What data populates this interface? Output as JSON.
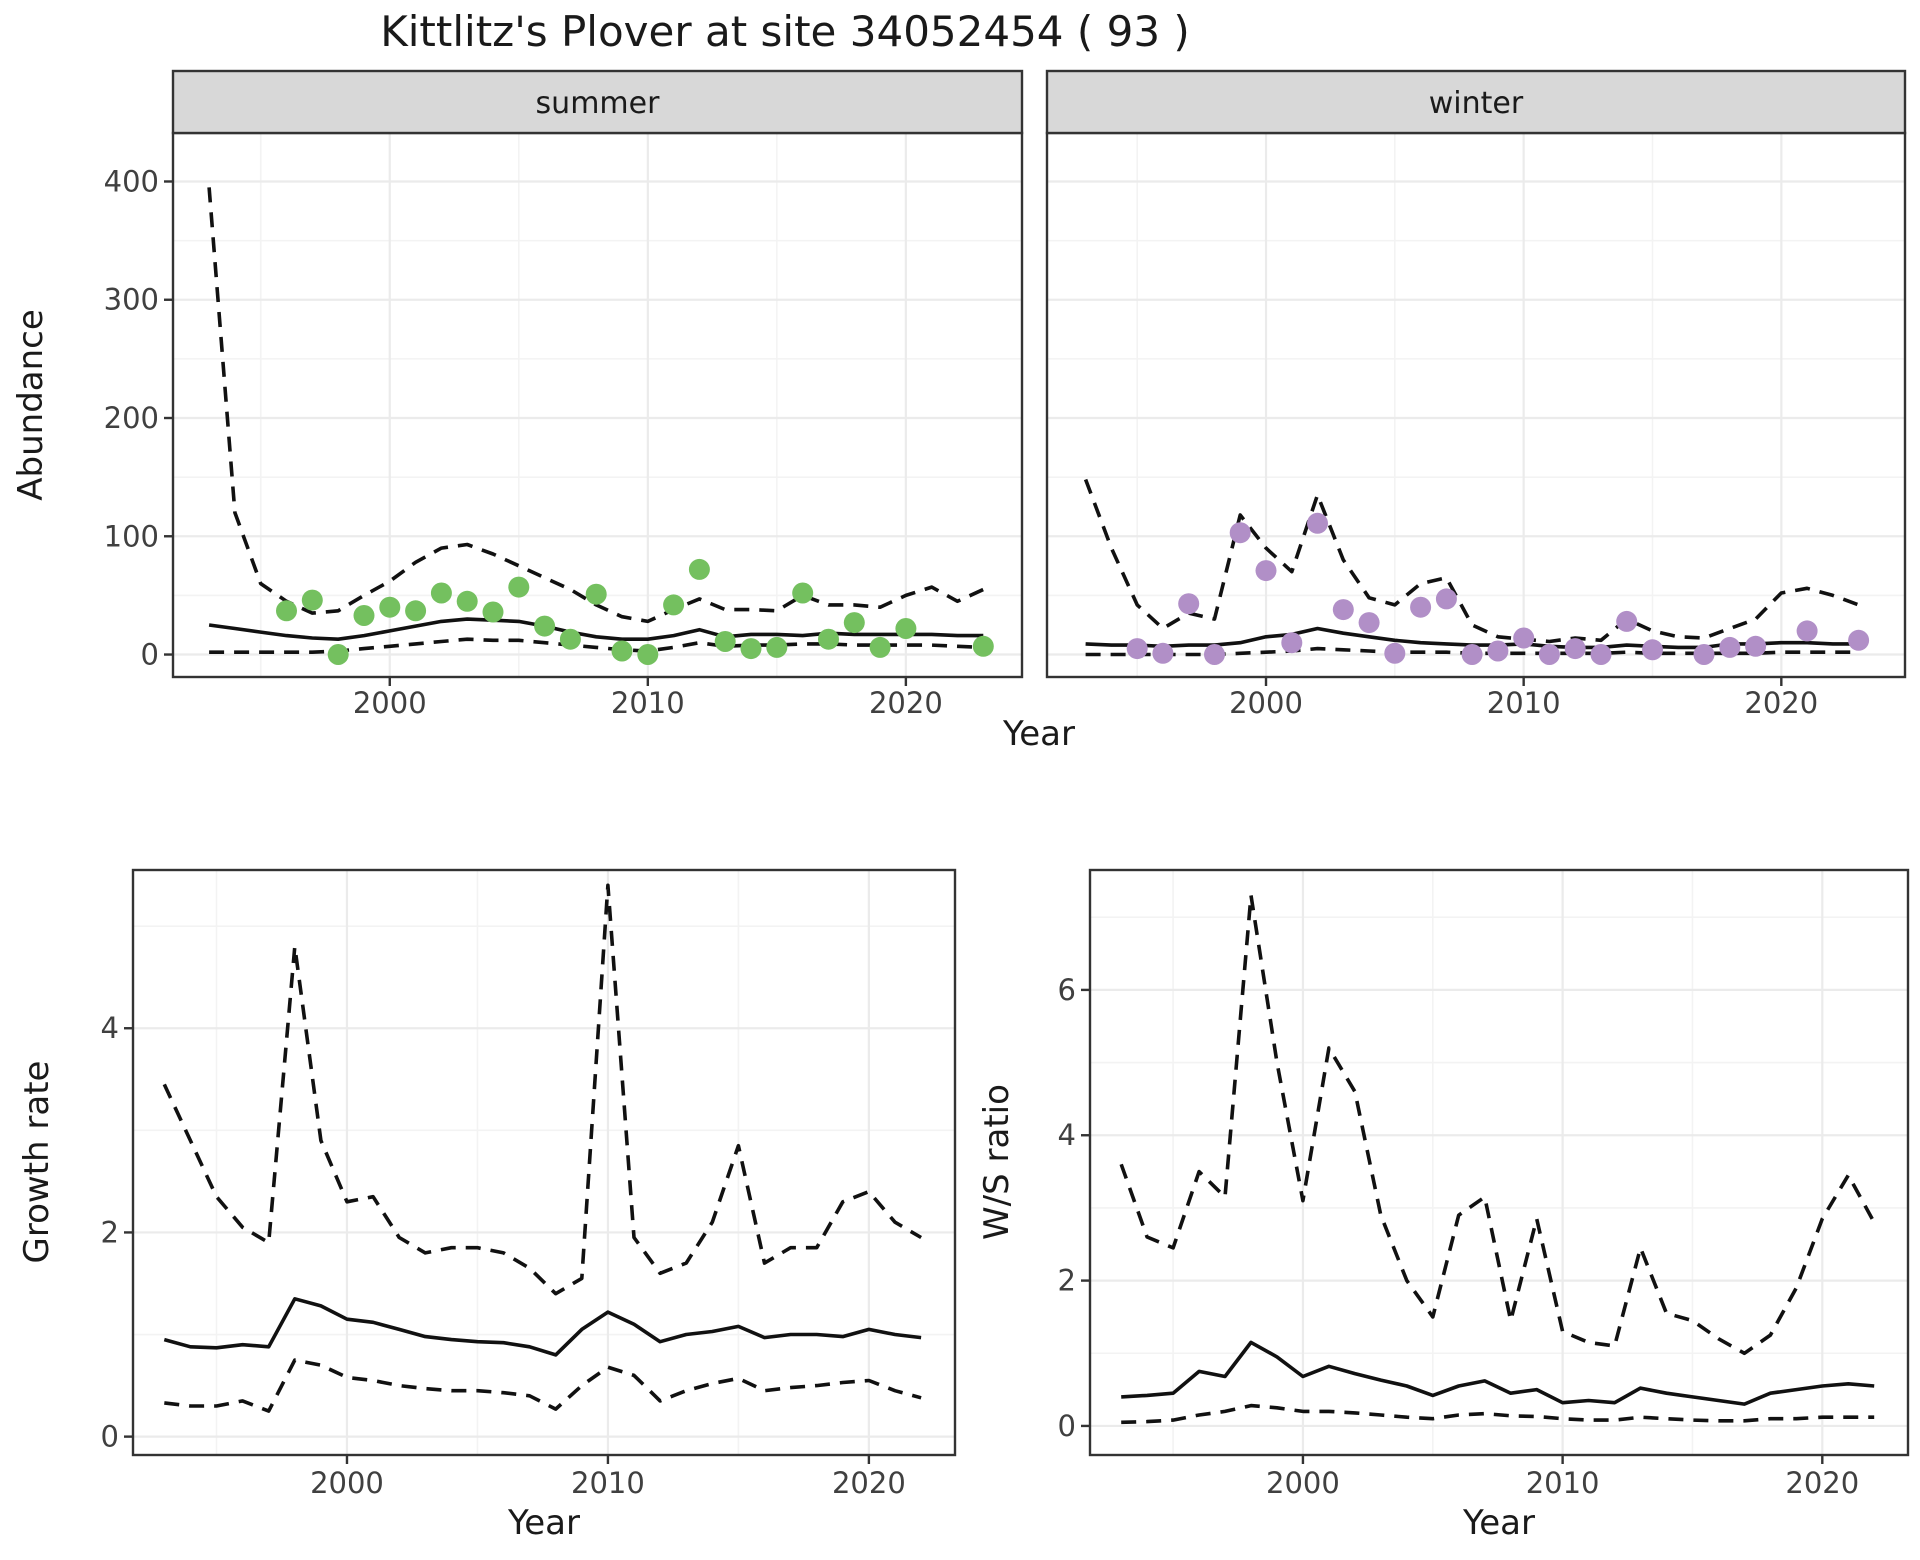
{
  "title": "Kittlitz's Plover at site 34052454 ( 93 )",
  "labels": {
    "x_axis": "Year",
    "y_axis_top": "Abundance",
    "y_axis_growth": "Growth rate",
    "y_axis_ws": "W/S ratio"
  },
  "colors": {
    "summer_point": "#74c05f",
    "winter_point": "#b18fc7",
    "line": "#111111",
    "strip_bg": "#d8d8d8",
    "grid_major": "#ebebeb",
    "panel_border": "#333333",
    "tick_text": "#404040"
  },
  "chart_data": [
    {
      "id": "abundance-summer",
      "type": "line+scatter",
      "strip": "summer",
      "xlabel": "Year",
      "ylabel": "Abundance",
      "xlim": [
        1991.6,
        2024.5
      ],
      "ylim": [
        -19,
        441
      ],
      "xticks": [
        2000,
        2010,
        2020
      ],
      "xticks_minor": [
        1995,
        2005,
        2015
      ],
      "yticks": [
        0,
        100,
        200,
        300,
        400
      ],
      "yticks_minor": [
        50,
        150,
        250,
        350
      ],
      "show_ytick_labels": true,
      "line_years": [
        1993,
        1994,
        1995,
        1996,
        1997,
        1998,
        1999,
        2000,
        2001,
        2002,
        2003,
        2004,
        2005,
        2006,
        2007,
        2008,
        2009,
        2010,
        2011,
        2012,
        2013,
        2014,
        2015,
        2016,
        2017,
        2018,
        2019,
        2020,
        2021,
        2022,
        2023
      ],
      "series": [
        {
          "name": "median",
          "style": "solid",
          "values": [
            25,
            22,
            19,
            16,
            14,
            13,
            16,
            20,
            24,
            28,
            30,
            29,
            28,
            24,
            19,
            15,
            13,
            13,
            16,
            21,
            15,
            17,
            17,
            16,
            18,
            17,
            17,
            17,
            17,
            16,
            16
          ]
        },
        {
          "name": "upper-ci",
          "style": "dashed",
          "values": [
            395,
            120,
            60,
            45,
            35,
            37,
            50,
            62,
            78,
            90,
            93,
            85,
            75,
            65,
            55,
            42,
            32,
            28,
            38,
            47,
            38,
            38,
            37,
            50,
            42,
            42,
            40,
            50,
            57,
            45,
            55
          ]
        },
        {
          "name": "lower-ci",
          "style": "dashed",
          "values": [
            2,
            2,
            2,
            2,
            2,
            3,
            5,
            7,
            9,
            11,
            13,
            12,
            12,
            10,
            8,
            6,
            4,
            3,
            6,
            10,
            7,
            8,
            8,
            9,
            9,
            8,
            8,
            8,
            8,
            7,
            6
          ]
        }
      ],
      "points": {
        "color_key": "summer_point",
        "years": [
          1996,
          1997,
          1998,
          1999,
          2000,
          2001,
          2002,
          2003,
          2004,
          2005,
          2006,
          2007,
          2008,
          2009,
          2010,
          2011,
          2012,
          2013,
          2014,
          2015,
          2016,
          2017,
          2018,
          2019,
          2020,
          2023
        ],
        "values": [
          37,
          46,
          0,
          33,
          40,
          37,
          52,
          45,
          36,
          57,
          24,
          13,
          51,
          3,
          0,
          42,
          72,
          11,
          5,
          6,
          52,
          13,
          27,
          6,
          22,
          7
        ]
      }
    },
    {
      "id": "abundance-winter",
      "type": "line+scatter",
      "strip": "winter",
      "xlabel": "Year",
      "ylabel": "Abundance",
      "xlim": [
        1991.5,
        2024.8
      ],
      "ylim": [
        -19,
        441
      ],
      "xticks": [
        2000,
        2010,
        2020
      ],
      "xticks_minor": [
        1995,
        2005,
        2015
      ],
      "yticks": [
        0,
        100,
        200,
        300,
        400
      ],
      "yticks_minor": [
        50,
        150,
        250,
        350
      ],
      "show_ytick_labels": false,
      "line_years": [
        1993,
        1994,
        1995,
        1996,
        1997,
        1998,
        1999,
        2000,
        2001,
        2002,
        2003,
        2004,
        2005,
        2006,
        2007,
        2008,
        2009,
        2010,
        2011,
        2012,
        2013,
        2014,
        2015,
        2016,
        2017,
        2018,
        2019,
        2020,
        2021,
        2022,
        2023
      ],
      "series": [
        {
          "name": "median",
          "style": "solid",
          "values": [
            9,
            8,
            8,
            7,
            8,
            8,
            10,
            15,
            17,
            22,
            18,
            15,
            12,
            10,
            9,
            8,
            8,
            9,
            7,
            6,
            6,
            8,
            7,
            6,
            6,
            9,
            9,
            10,
            10,
            9,
            9
          ]
        },
        {
          "name": "upper-ci",
          "style": "dashed",
          "values": [
            148,
            90,
            42,
            22,
            35,
            30,
            118,
            90,
            70,
            135,
            80,
            48,
            42,
            60,
            65,
            25,
            15,
            13,
            11,
            14,
            12,
            30,
            20,
            15,
            14,
            22,
            30,
            52,
            56,
            50,
            42
          ]
        },
        {
          "name": "lower-ci",
          "style": "dashed",
          "values": [
            0,
            0,
            0,
            0,
            0,
            0,
            1,
            2,
            3,
            5,
            4,
            3,
            2,
            2,
            2,
            1,
            1,
            1,
            1,
            1,
            1,
            2,
            1,
            1,
            1,
            1,
            1,
            2,
            2,
            2,
            2
          ]
        }
      ],
      "points": {
        "color_key": "winter_point",
        "years": [
          1995,
          1996,
          1997,
          1998,
          1999,
          2000,
          2001,
          2002,
          2003,
          2004,
          2005,
          2006,
          2007,
          2008,
          2009,
          2010,
          2011,
          2012,
          2013,
          2014,
          2015,
          2017,
          2018,
          2019,
          2021,
          2023
        ],
        "values": [
          5,
          1,
          43,
          0,
          103,
          71,
          10,
          111,
          38,
          27,
          1,
          40,
          47,
          0,
          3,
          14,
          0,
          5,
          0,
          28,
          4,
          0,
          6,
          7,
          20,
          12
        ]
      }
    },
    {
      "id": "growth-rate",
      "type": "line",
      "strip": null,
      "xlabel": "Year",
      "ylabel": "Growth rate",
      "xlim": [
        1991.8,
        2023.3
      ],
      "ylim": [
        -0.18,
        5.55
      ],
      "xticks": [
        2000,
        2010,
        2020
      ],
      "xticks_minor": [
        1995,
        2005,
        2015
      ],
      "yticks": [
        0,
        2,
        4
      ],
      "yticks_minor": [
        1,
        3,
        5
      ],
      "show_ytick_labels": true,
      "line_years": [
        1993,
        1994,
        1995,
        1996,
        1997,
        1998,
        1999,
        2000,
        2001,
        2002,
        2003,
        2004,
        2005,
        2006,
        2007,
        2008,
        2009,
        2010,
        2011,
        2012,
        2013,
        2014,
        2015,
        2016,
        2017,
        2018,
        2019,
        2020,
        2021,
        2022
      ],
      "series": [
        {
          "name": "median",
          "style": "solid",
          "values": [
            0.95,
            0.88,
            0.87,
            0.9,
            0.88,
            1.35,
            1.28,
            1.15,
            1.12,
            1.05,
            0.98,
            0.95,
            0.93,
            0.92,
            0.88,
            0.8,
            1.05,
            1.22,
            1.1,
            0.93,
            1.0,
            1.03,
            1.08,
            0.97,
            1.0,
            1.0,
            0.98,
            1.05,
            1.0,
            0.97
          ]
        },
        {
          "name": "upper-ci",
          "style": "dashed",
          "values": [
            3.45,
            2.9,
            2.35,
            2.05,
            1.9,
            4.8,
            2.9,
            2.3,
            2.35,
            1.95,
            1.8,
            1.85,
            1.85,
            1.8,
            1.65,
            1.4,
            1.55,
            5.4,
            1.95,
            1.6,
            1.7,
            2.1,
            2.85,
            1.7,
            1.85,
            1.85,
            2.3,
            2.4,
            2.1,
            1.95
          ]
        },
        {
          "name": "lower-ci",
          "style": "dashed",
          "values": [
            0.33,
            0.3,
            0.3,
            0.35,
            0.25,
            0.75,
            0.7,
            0.58,
            0.55,
            0.5,
            0.47,
            0.45,
            0.45,
            0.43,
            0.4,
            0.27,
            0.5,
            0.68,
            0.6,
            0.35,
            0.45,
            0.52,
            0.57,
            0.45,
            0.48,
            0.5,
            0.53,
            0.55,
            0.45,
            0.38
          ]
        }
      ],
      "points": null
    },
    {
      "id": "ws-ratio",
      "type": "line",
      "strip": null,
      "xlabel": "Year",
      "ylabel": "W/S ratio",
      "xlim": [
        1991.8,
        2023.3
      ],
      "ylim": [
        -0.4,
        7.65
      ],
      "xticks": [
        2000,
        2010,
        2020
      ],
      "xticks_minor": [
        1995,
        2005,
        2015
      ],
      "yticks": [
        0,
        2,
        4,
        6
      ],
      "yticks_minor": [
        1,
        3,
        5,
        7
      ],
      "show_ytick_labels": true,
      "line_years": [
        1993,
        1994,
        1995,
        1996,
        1997,
        1998,
        1999,
        2000,
        2001,
        2002,
        2003,
        2004,
        2005,
        2006,
        2007,
        2008,
        2009,
        2010,
        2011,
        2012,
        2013,
        2014,
        2015,
        2016,
        2017,
        2018,
        2019,
        2020,
        2021,
        2022
      ],
      "series": [
        {
          "name": "median",
          "style": "solid",
          "values": [
            0.4,
            0.42,
            0.45,
            0.75,
            0.68,
            1.15,
            0.95,
            0.68,
            0.82,
            0.72,
            0.63,
            0.55,
            0.42,
            0.55,
            0.62,
            0.45,
            0.5,
            0.32,
            0.35,
            0.32,
            0.52,
            0.45,
            0.4,
            0.35,
            0.3,
            0.45,
            0.5,
            0.55,
            0.58,
            0.55
          ]
        },
        {
          "name": "upper-ci",
          "style": "dashed",
          "values": [
            3.6,
            2.6,
            2.45,
            3.5,
            3.15,
            7.3,
            5.0,
            3.1,
            5.2,
            4.6,
            2.9,
            2.0,
            1.5,
            2.9,
            3.15,
            1.45,
            2.85,
            1.3,
            1.15,
            1.1,
            2.45,
            1.55,
            1.45,
            1.2,
            1.0,
            1.25,
            1.9,
            2.85,
            3.45,
            2.8
          ]
        },
        {
          "name": "lower-ci",
          "style": "dashed",
          "values": [
            0.05,
            0.06,
            0.08,
            0.15,
            0.2,
            0.28,
            0.25,
            0.2,
            0.2,
            0.18,
            0.15,
            0.12,
            0.1,
            0.15,
            0.17,
            0.14,
            0.13,
            0.1,
            0.08,
            0.08,
            0.12,
            0.1,
            0.08,
            0.07,
            0.07,
            0.1,
            0.1,
            0.12,
            0.12,
            0.12
          ]
        }
      ],
      "points": null
    }
  ]
}
